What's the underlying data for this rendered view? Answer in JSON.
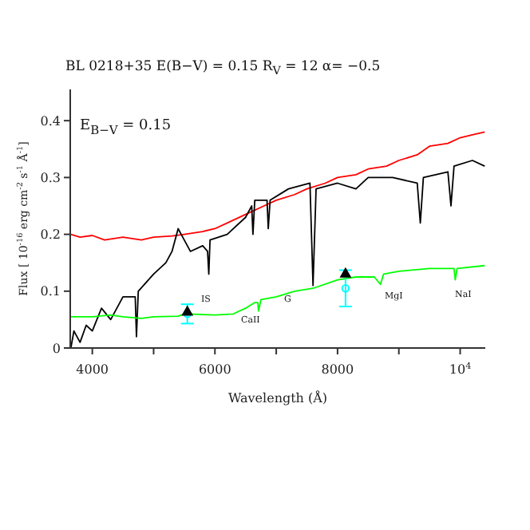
{
  "chart_data": {
    "type": "line",
    "title": "BL 0218+35 E(B−V) = 0.15 R$_{V}$ = 12 α= −0.5",
    "xlabel": "Wavelength (Å)",
    "ylabel": "Flux [ 10$^{-16}$ erg cm$^{-2}$ s$^{-1}$ Å$^{-1}$]",
    "xlim": [
      3640,
      10410
    ],
    "xticks": [
      {
        "value": 4000,
        "label": "4000"
      },
      {
        "value": 5000,
        "label": null
      },
      {
        "value": 6000,
        "label": "6000"
      },
      {
        "value": 7000,
        "label": null
      },
      {
        "value": 8000,
        "label": "8000"
      },
      {
        "value": 9000,
        "label": null
      },
      {
        "value": 10000,
        "label": "10$^{4}$"
      }
    ],
    "ylim": [
      0,
      0.455
    ],
    "yticks": [
      0,
      0.1,
      0.2,
      0.3,
      0.4
    ],
    "grid": false,
    "marker": "none",
    "series": [
      {
        "color": "#ff0000",
        "x": [
          3650,
          3800,
          4000,
          4200,
          4500,
          4800,
          5000,
          5300,
          5500,
          5800,
          6000,
          6200,
          6500,
          6800,
          7000,
          7300,
          7500,
          7800,
          8000,
          8300,
          8500,
          8800,
          9000,
          9300,
          9500,
          9800,
          10000,
          10200,
          10400
        ],
        "values": [
          0.2,
          0.195,
          0.198,
          0.19,
          0.195,
          0.19,
          0.195,
          0.197,
          0.2,
          0.205,
          0.21,
          0.22,
          0.235,
          0.25,
          0.26,
          0.27,
          0.28,
          0.29,
          0.3,
          0.305,
          0.315,
          0.32,
          0.33,
          0.34,
          0.355,
          0.36,
          0.37,
          0.375,
          0.38
        ]
      },
      {
        "color": "#000000",
        "x": [
          3650,
          3700,
          3800,
          3900,
          4000,
          4150,
          4300,
          4500,
          4700,
          4720,
          4750,
          5000,
          5200,
          5300,
          5400,
          5450,
          5600,
          5800,
          5880,
          5900,
          5920,
          6200,
          6500,
          6600,
          6620,
          6650,
          6850,
          6870,
          6900,
          7200,
          7550,
          7600,
          7650,
          8000,
          8300,
          8500,
          8900,
          9300,
          9350,
          9400,
          9800,
          9850,
          9900,
          10200,
          10400
        ],
        "values": [
          0.0,
          0.03,
          0.01,
          0.04,
          0.03,
          0.07,
          0.05,
          0.09,
          0.09,
          0.02,
          0.1,
          0.13,
          0.15,
          0.17,
          0.21,
          0.2,
          0.17,
          0.18,
          0.17,
          0.13,
          0.19,
          0.2,
          0.23,
          0.25,
          0.2,
          0.26,
          0.26,
          0.21,
          0.26,
          0.28,
          0.29,
          0.11,
          0.28,
          0.29,
          0.28,
          0.3,
          0.3,
          0.29,
          0.22,
          0.3,
          0.31,
          0.25,
          0.32,
          0.33,
          0.32
        ]
      },
      {
        "color": "#00ff00",
        "x": [
          3650,
          4000,
          4300,
          4500,
          4800,
          5000,
          5400,
          5500,
          6000,
          6300,
          6500,
          6650,
          6700,
          6710,
          6750,
          7000,
          7300,
          7600,
          8000,
          8300,
          8600,
          8700,
          8750,
          9000,
          9500,
          9900,
          9920,
          9950,
          10400
        ],
        "values": [
          0.055,
          0.055,
          0.058,
          0.055,
          0.052,
          0.055,
          0.056,
          0.06,
          0.058,
          0.06,
          0.07,
          0.08,
          0.08,
          0.065,
          0.085,
          0.09,
          0.1,
          0.105,
          0.12,
          0.125,
          0.125,
          0.112,
          0.13,
          0.135,
          0.14,
          0.14,
          0.12,
          0.14,
          0.145
        ]
      },
      {
        "type": "scatter",
        "color": "#00ffff",
        "marker": "circle",
        "x": [
          5550,
          8130
        ],
        "values": [
          0.06,
          0.105
        ],
        "errors": [
          0.017,
          0.032
        ]
      },
      {
        "type": "scatter",
        "color": "#000000",
        "marker": "triangle",
        "x": [
          5550,
          8130
        ],
        "values": [
          0.063,
          0.13
        ]
      }
    ],
    "annotations": [
      "E$_{B−V}$ = 0.15",
      "IS",
      "CaII",
      "G",
      "MgI",
      "NaI"
    ]
  }
}
